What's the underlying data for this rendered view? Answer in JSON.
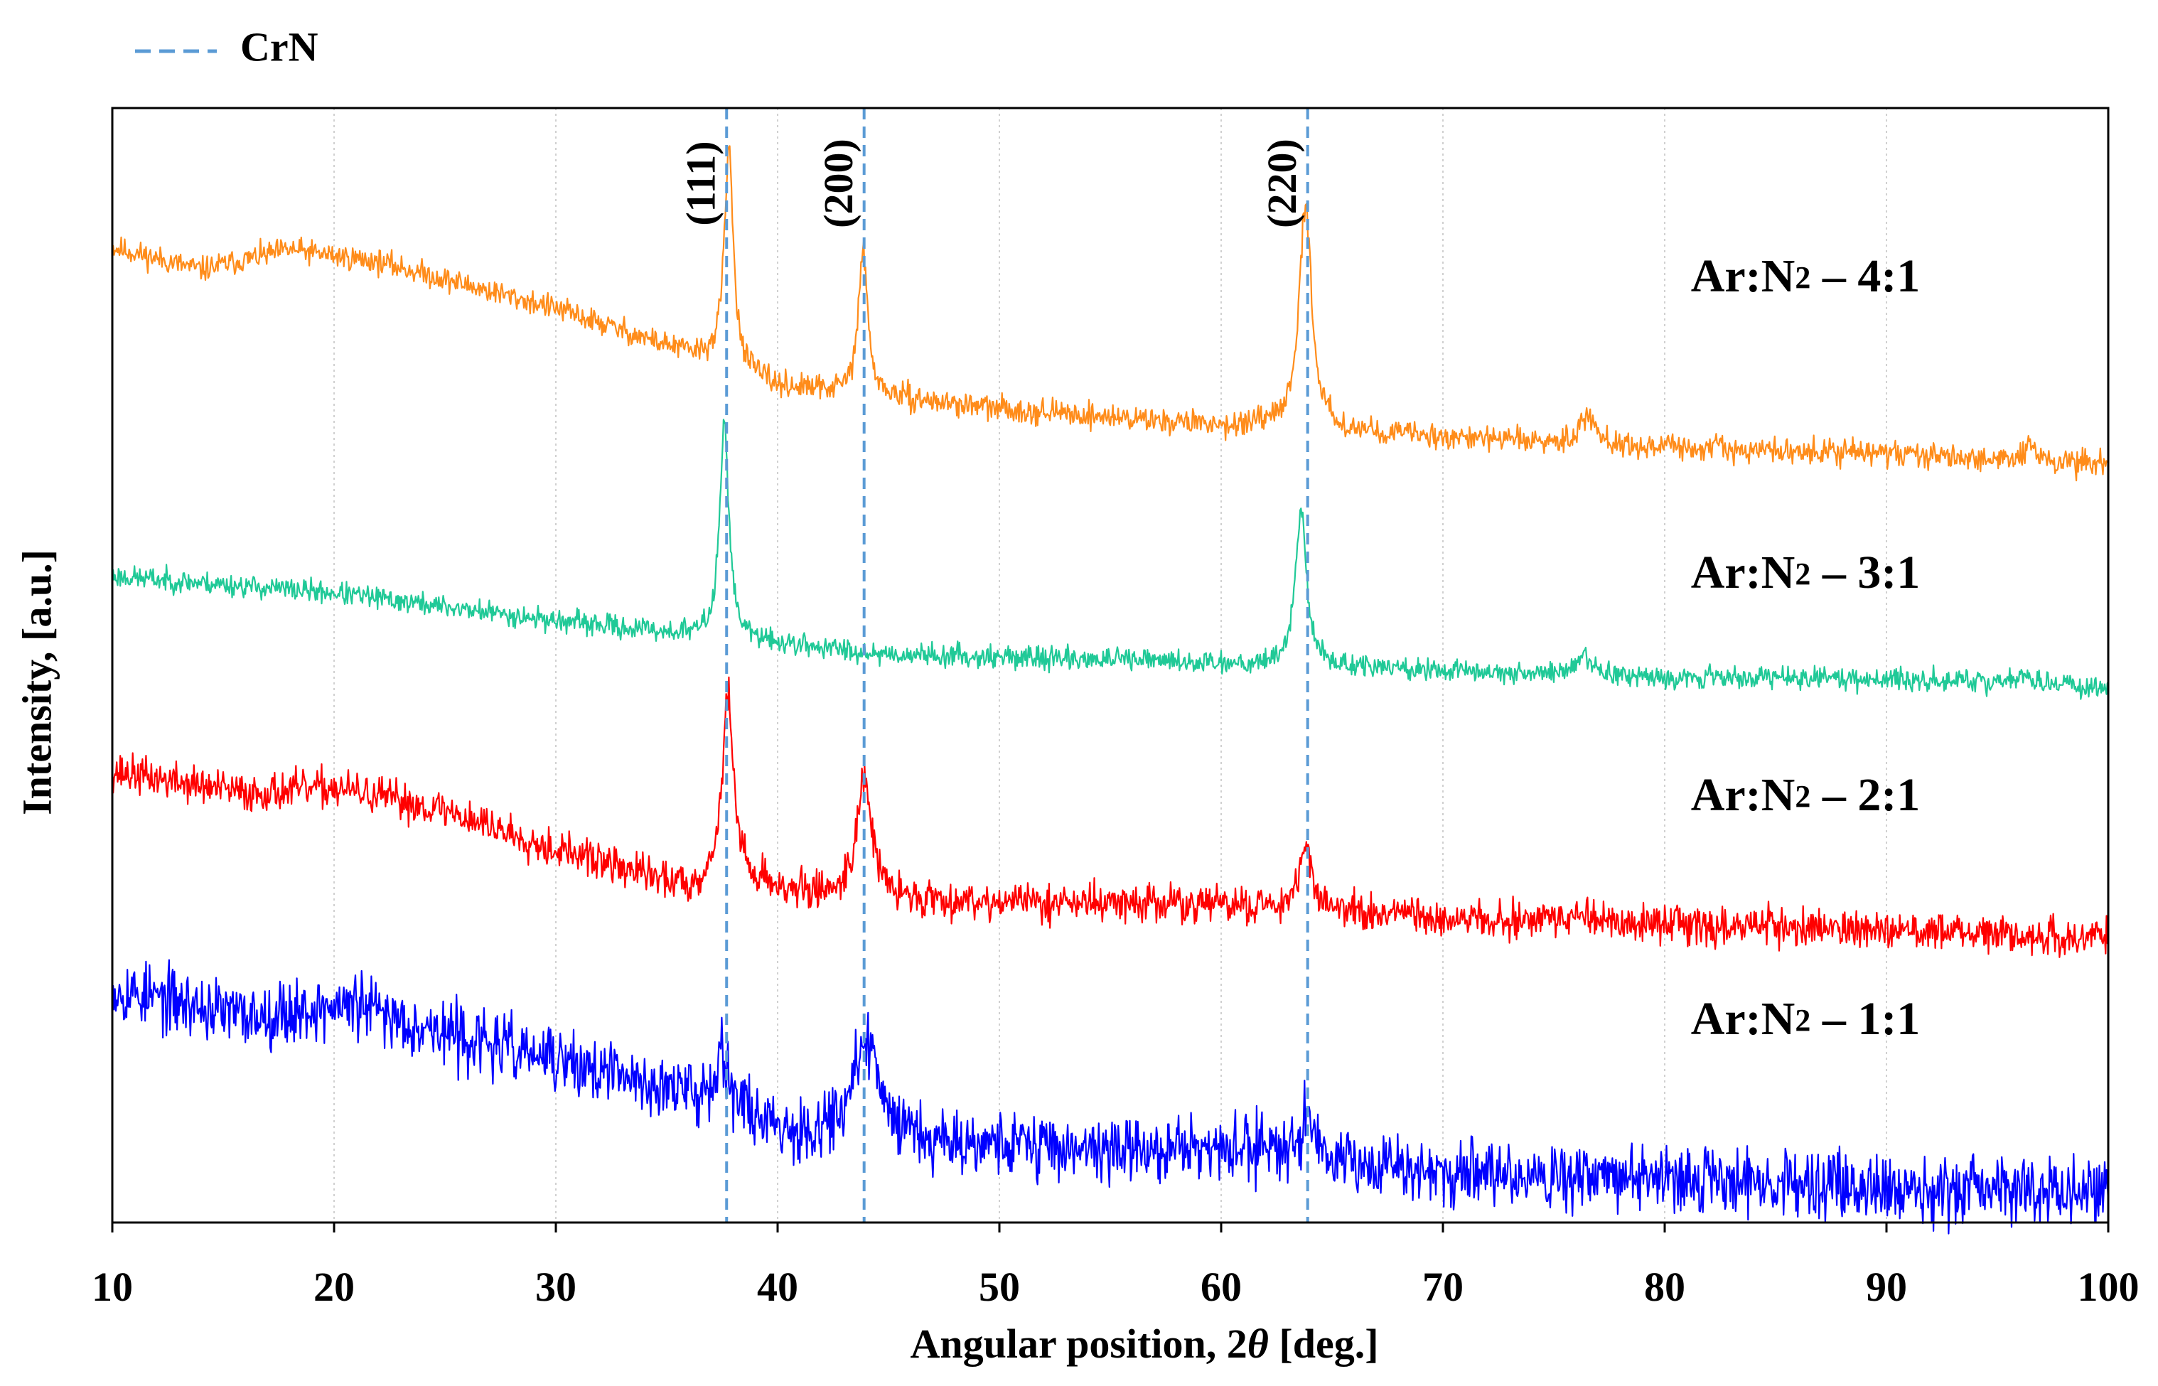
{
  "chart_data": {
    "type": "line",
    "title": "",
    "xlabel": "Angular position, 2θ [deg.]",
    "xlabel_parts": {
      "prefix": "Angular position, 2",
      "symbol": "θ",
      "suffix": " [deg.]"
    },
    "ylabel": "Intensity, [a.u.]",
    "xlim": [
      10,
      100
    ],
    "ylim": [
      0,
      100
    ],
    "x_ticks": [
      10,
      20,
      30,
      40,
      50,
      60,
      70,
      80,
      90,
      100
    ],
    "y_ticks_shown": false,
    "grid": {
      "vertical": true,
      "horizontal": false,
      "style": "dotted"
    },
    "legend": {
      "position": "top-left",
      "label": "CrN",
      "color": "#5b9bd5",
      "style": "dashed"
    },
    "reference_lines": [
      {
        "name": "CrN (111)",
        "x": 37.7,
        "label": "(111)"
      },
      {
        "name": "CrN (200)",
        "x": 43.9,
        "label": "(200)"
      },
      {
        "name": "CrN (220)",
        "x": 63.9,
        "label": "(220)"
      }
    ],
    "series": [
      {
        "name": "Ar:N2 – 4:1",
        "label_main": "Ar:N",
        "label_sub": "2",
        "label_ratio": " – 4:1",
        "color": "#ff8c1a",
        "noise": 1.1,
        "seed": 11,
        "baseline": [
          [
            10,
            87.5
          ],
          [
            14,
            85.5
          ],
          [
            18,
            87.3
          ],
          [
            22,
            86.2
          ],
          [
            30,
            82.0
          ],
          [
            37,
            77.3
          ],
          [
            40,
            75.0
          ],
          [
            50,
            73.0
          ],
          [
            60,
            71.5
          ],
          [
            70,
            70.5
          ],
          [
            80,
            69.5
          ],
          [
            90,
            69.0
          ],
          [
            100,
            68.0
          ]
        ],
        "peaks": [
          {
            "x": 37.8,
            "height": 19.5,
            "width": 0.25
          },
          {
            "x": 43.85,
            "height": 13.0,
            "width": 0.25
          },
          {
            "x": 63.8,
            "height": 20.0,
            "width": 0.35
          },
          {
            "x": 76.5,
            "height": 2.8,
            "width": 0.4
          },
          {
            "x": 96.5,
            "height": 1.5,
            "width": 0.3
          }
        ]
      },
      {
        "name": "Ar:N2 – 3:1",
        "label_main": "Ar:N",
        "label_sub": "2",
        "label_ratio": " – 3:1",
        "color": "#20c997",
        "noise": 1.0,
        "seed": 23,
        "baseline": [
          [
            10,
            58.0
          ],
          [
            20,
            56.5
          ],
          [
            30,
            54.0
          ],
          [
            37,
            52.5
          ],
          [
            45,
            51.0
          ],
          [
            55,
            50.5
          ],
          [
            63,
            50.0
          ],
          [
            70,
            49.5
          ],
          [
            80,
            49.0
          ],
          [
            90,
            48.8
          ],
          [
            100,
            48.0
          ]
        ],
        "peaks": [
          {
            "x": 37.6,
            "height": 19.5,
            "width": 0.25
          },
          {
            "x": 63.6,
            "height": 14.0,
            "width": 0.3
          },
          {
            "x": 76.3,
            "height": 1.8,
            "width": 0.35
          },
          {
            "x": 96.3,
            "height": 1.0,
            "width": 0.3
          }
        ]
      },
      {
        "name": "Ar:N2 – 2:1",
        "label_main": "Ar:N",
        "label_sub": "2",
        "label_ratio": " – 2:1",
        "color": "#ff0000",
        "noise": 1.7,
        "seed": 37,
        "baseline": [
          [
            10,
            40.5
          ],
          [
            16,
            38.5
          ],
          [
            20,
            39.0
          ],
          [
            25,
            37.0
          ],
          [
            30,
            33.5
          ],
          [
            36,
            30.0
          ],
          [
            38,
            31.0
          ],
          [
            41,
            29.5
          ],
          [
            45,
            29.0
          ],
          [
            50,
            28.8
          ],
          [
            60,
            28.5
          ],
          [
            70,
            27.2
          ],
          [
            80,
            26.8
          ],
          [
            90,
            26.3
          ],
          [
            100,
            25.5
          ]
        ],
        "peaks": [
          {
            "x": 37.75,
            "height": 16.5,
            "width": 0.3
          },
          {
            "x": 43.9,
            "height": 11.0,
            "width": 0.4
          },
          {
            "x": 63.8,
            "height": 5.5,
            "width": 0.4
          },
          {
            "x": 76.2,
            "height": 0.8,
            "width": 0.4
          }
        ]
      },
      {
        "name": "Ar:N2 – 1:1",
        "label_main": "Ar:N",
        "label_sub": "2",
        "label_ratio": " – 1:1",
        "color": "#0000ff",
        "noise": 2.9,
        "seed": 53,
        "baseline": [
          [
            10,
            21.0
          ],
          [
            16,
            18.5
          ],
          [
            21,
            19.5
          ],
          [
            25,
            17.0
          ],
          [
            30,
            14.5
          ],
          [
            37,
            11.0
          ],
          [
            41,
            8.0
          ],
          [
            44,
            9.5
          ],
          [
            47,
            7.5
          ],
          [
            55,
            6.5
          ],
          [
            62,
            6.5
          ],
          [
            70,
            4.5
          ],
          [
            80,
            3.8
          ],
          [
            90,
            3.2
          ],
          [
            100,
            2.8
          ]
        ],
        "peaks": [
          {
            "x": 37.5,
            "height": 5.0,
            "width": 0.35
          },
          {
            "x": 44.0,
            "height": 7.0,
            "width": 0.55
          },
          {
            "x": 63.9,
            "height": 3.5,
            "width": 0.5
          }
        ]
      }
    ]
  }
}
